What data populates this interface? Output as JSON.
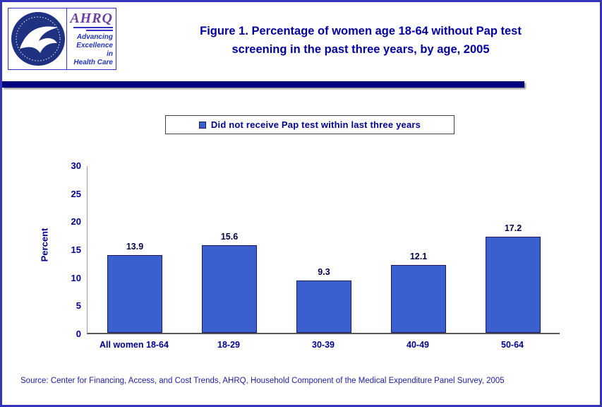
{
  "header": {
    "title_line1": "Figure 1. Percentage of women age 18-64 without Pap test",
    "title_line2": "screening in the past three years, by age, 2005",
    "logo": {
      "org_abbr": "AHRQ",
      "tagline_line1": "Advancing",
      "tagline_line2": "Excellence in",
      "tagline_line3": "Health Care"
    }
  },
  "chart_data": {
    "type": "bar",
    "title": "Percentage of women age 18-64 without Pap test screening in the past three years, by age, 2005",
    "legend_label": "Did not receive Pap test within last three years",
    "legend_position": "top",
    "categories": [
      "All women 18-64",
      "18-29",
      "30-39",
      "40-49",
      "50-64"
    ],
    "values": [
      13.9,
      15.6,
      9.3,
      12.1,
      17.2
    ],
    "value_labels": [
      "13.9",
      "15.6",
      "9.3",
      "12.1",
      "17.2"
    ],
    "xlabel": "",
    "ylabel": "Percent",
    "ylim": [
      0,
      30
    ],
    "yticks": [
      0,
      5,
      10,
      15,
      20,
      25,
      30
    ],
    "grid": false,
    "bar_color": "#3b5fcc",
    "bar_border_color": "#1a1a66"
  },
  "source": "Source: Center for Financing, Access, and Cost Trends, AHRQ, Household Component of the Medical Expenditure Panel Survey, 2005"
}
